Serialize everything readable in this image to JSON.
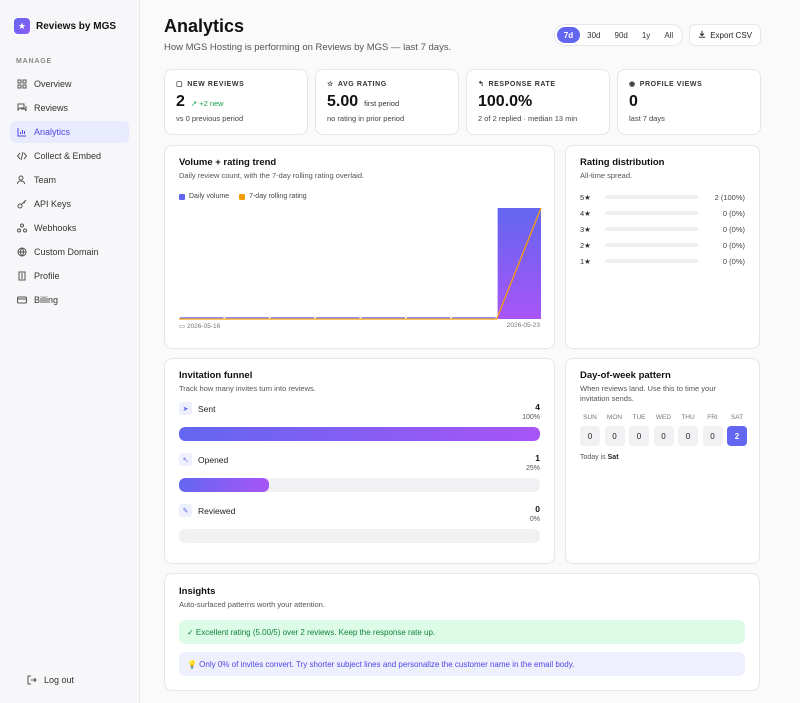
{
  "brand": {
    "name": "Reviews by MGS",
    "logo_icon": "star-icon"
  },
  "sidebar": {
    "section_label": "MANAGE",
    "items": [
      {
        "label": "Overview",
        "icon": "grid-icon",
        "active": false
      },
      {
        "label": "Reviews",
        "icon": "chat-icon",
        "active": false
      },
      {
        "label": "Analytics",
        "icon": "bar-chart-icon",
        "active": true
      },
      {
        "label": "Collect & Embed",
        "icon": "code-icon",
        "active": false
      },
      {
        "label": "Team",
        "icon": "users-icon",
        "active": false
      },
      {
        "label": "API Keys",
        "icon": "key-icon",
        "active": false
      },
      {
        "label": "Webhooks",
        "icon": "webhook-icon",
        "active": false
      },
      {
        "label": "Custom Domain",
        "icon": "globe-icon",
        "active": false
      },
      {
        "label": "Profile",
        "icon": "building-icon",
        "active": false
      },
      {
        "label": "Billing",
        "icon": "card-icon",
        "active": false
      }
    ],
    "logout_label": "Log out"
  },
  "header": {
    "title": "Analytics",
    "subtitle": "How MGS Hosting is performing on Reviews by MGS — last 7 days.",
    "ranges": [
      "7d",
      "30d",
      "90d",
      "1y",
      "All"
    ],
    "active_range": "7d",
    "export_label": "Export CSV"
  },
  "stats": [
    {
      "label": "NEW REVIEWS",
      "value": "2",
      "delta": "+2 new",
      "note": "",
      "sub": "vs 0 previous period"
    },
    {
      "label": "AVG RATING",
      "value": "5.00",
      "delta": "",
      "note": "first period",
      "sub": "no rating in prior period"
    },
    {
      "label": "RESPONSE RATE",
      "value": "100.0%",
      "delta": "",
      "note": "",
      "sub": "2 of 2 replied · median 13 min"
    },
    {
      "label": "PROFILE VIEWS",
      "value": "0",
      "delta": "",
      "note": "",
      "sub": "last 7 days"
    }
  ],
  "trend": {
    "title": "Volume + rating trend",
    "subtitle": "Daily review count, with the 7-day rolling rating overlaid.",
    "legend_volume": "Daily volume",
    "legend_rating": "7-day rolling rating",
    "start_date": "2026-05-16",
    "end_date": "2026-05-23"
  },
  "chart_data": {
    "type": "bar",
    "title": "Volume + rating trend",
    "categories": [
      "2026-05-16",
      "",
      "",
      "",
      "",
      "",
      "",
      "2026-05-23"
    ],
    "series": [
      {
        "name": "Daily volume",
        "values": [
          0,
          0,
          0,
          0,
          0,
          0,
          0,
          2
        ],
        "color": "#6366f1"
      },
      {
        "name": "7-day rolling rating",
        "values": [
          0,
          0,
          0,
          0,
          0,
          0,
          0,
          5
        ],
        "color": "#f59e0b"
      }
    ]
  },
  "distribution": {
    "title": "Rating distribution",
    "subtitle": "All-time spread.",
    "rows": [
      {
        "star": "5★",
        "value": "2 (100%)"
      },
      {
        "star": "4★",
        "value": "0 (0%)"
      },
      {
        "star": "3★",
        "value": "0 (0%)"
      },
      {
        "star": "2★",
        "value": "0 (0%)"
      },
      {
        "star": "1★",
        "value": "0 (0%)"
      }
    ]
  },
  "funnel": {
    "title": "Invitation funnel",
    "subtitle": "Track how many invites turn into reviews.",
    "steps": [
      {
        "label": "Sent",
        "count": "4",
        "pct": "100%",
        "fraction": 1.0,
        "icon": "send-icon"
      },
      {
        "label": "Opened",
        "count": "1",
        "pct": "25%",
        "fraction": 0.25,
        "icon": "pointer-icon"
      },
      {
        "label": "Reviewed",
        "count": "0",
        "pct": "0%",
        "fraction": 0,
        "icon": "edit-icon"
      }
    ]
  },
  "dow": {
    "title": "Day-of-week pattern",
    "subtitle": "When reviews land. Use this to time your invitation sends.",
    "days": [
      "SUN",
      "MON",
      "TUE",
      "WED",
      "THU",
      "FRI",
      "SAT"
    ],
    "values": [
      "0",
      "0",
      "0",
      "0",
      "0",
      "0",
      "2"
    ],
    "today_prefix": "Today is",
    "today": "Sat"
  },
  "insights": {
    "title": "Insights",
    "subtitle": "Auto-surfaced patterns worth your attention.",
    "items": [
      {
        "text": "✓ Excellent rating (5.00/5) over 2 reviews. Keep the response rate up.",
        "kind": "good"
      },
      {
        "text": "💡 Only 0% of invites convert. Try shorter subject lines and personalize the customer name in the email body.",
        "kind": "tip"
      }
    ]
  },
  "colors": {
    "accent": "#6366f1",
    "accent_end": "#a855f7",
    "rating_line": "#f59e0b",
    "success": "#16a34a"
  }
}
